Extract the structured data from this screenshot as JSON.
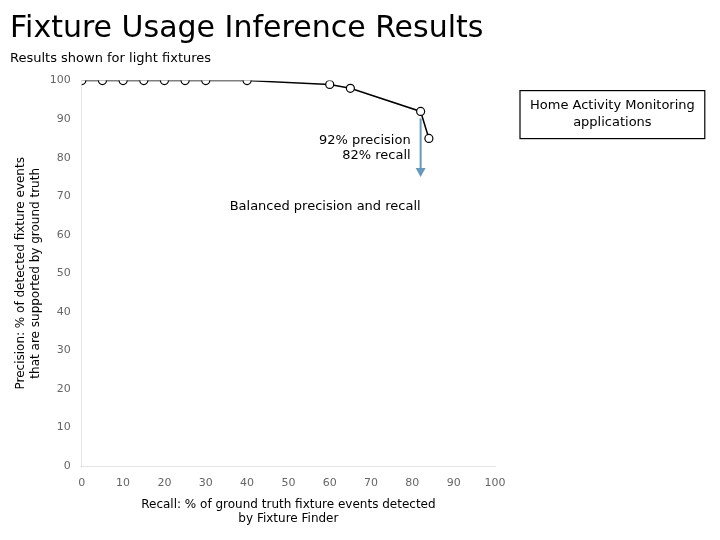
{
  "chart_data": {
    "type": "line",
    "title": "Fixture Usage Inference Results",
    "subtitle": "Results shown for light fixtures",
    "x_label": "Recall: % of ground truth fixture events detected by Fixture Finder",
    "y_label": "Precision: % of detected fixture events that are supported by ground truth",
    "x": [
      0,
      5,
      10,
      15,
      20,
      25,
      30,
      40,
      60,
      65,
      82,
      84
    ],
    "values": [
      100,
      100,
      100,
      100,
      100,
      100,
      100,
      100,
      99,
      98,
      92,
      85
    ],
    "color": "#000000",
    "marker": "circle",
    "grid": false,
    "xlim": [
      0,
      100
    ],
    "ylim": [
      0,
      100
    ],
    "xticks": [
      0,
      10,
      20,
      30,
      40,
      50,
      60,
      70,
      80,
      90,
      100
    ],
    "yticks": [
      0,
      10,
      20,
      30,
      40,
      50,
      60,
      70,
      80,
      90,
      100
    ],
    "annotations": [
      {
        "text": "92% precision\n82% recall",
        "x": 82,
        "y": 92,
        "arrow_to": 75,
        "color": "#6699bb"
      },
      {
        "text": "Balanced precision and recall"
      }
    ],
    "callout": "Home Activity Monitoring\napplications"
  }
}
